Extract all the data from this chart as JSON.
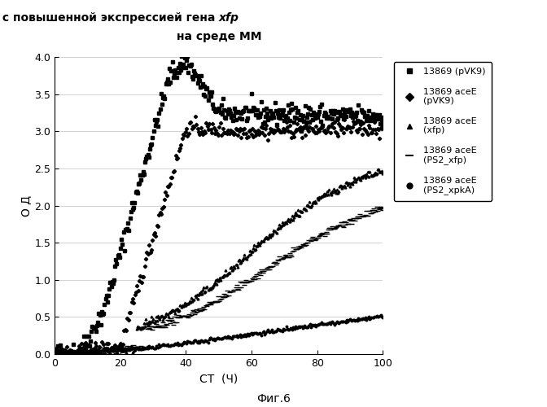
{
  "title_line1": "Кривые роста штаммов с повышенной экспрессией гена ",
  "title_xfp": "xfp",
  "title_line2": "на среде ММ",
  "xlabel": "СТ  (Ч)",
  "ylabel": "О Д",
  "figcaption": "Фиг.6",
  "xlim": [
    0,
    100
  ],
  "ylim": [
    0,
    4
  ],
  "xticks": [
    0,
    20,
    40,
    60,
    80,
    100
  ],
  "yticks": [
    0,
    0.5,
    1,
    1.5,
    2,
    2.5,
    3,
    3.5,
    4
  ],
  "legend": [
    "13869 (pVK9)",
    "13869 aceE\n(pVK9)",
    "13869 aceE\n(xfp)",
    "13869 aceE\n(PS2_xfp)",
    "13869 aceE\n(PS2_xpkA)"
  ],
  "color": "#000000",
  "background": "#ffffff"
}
